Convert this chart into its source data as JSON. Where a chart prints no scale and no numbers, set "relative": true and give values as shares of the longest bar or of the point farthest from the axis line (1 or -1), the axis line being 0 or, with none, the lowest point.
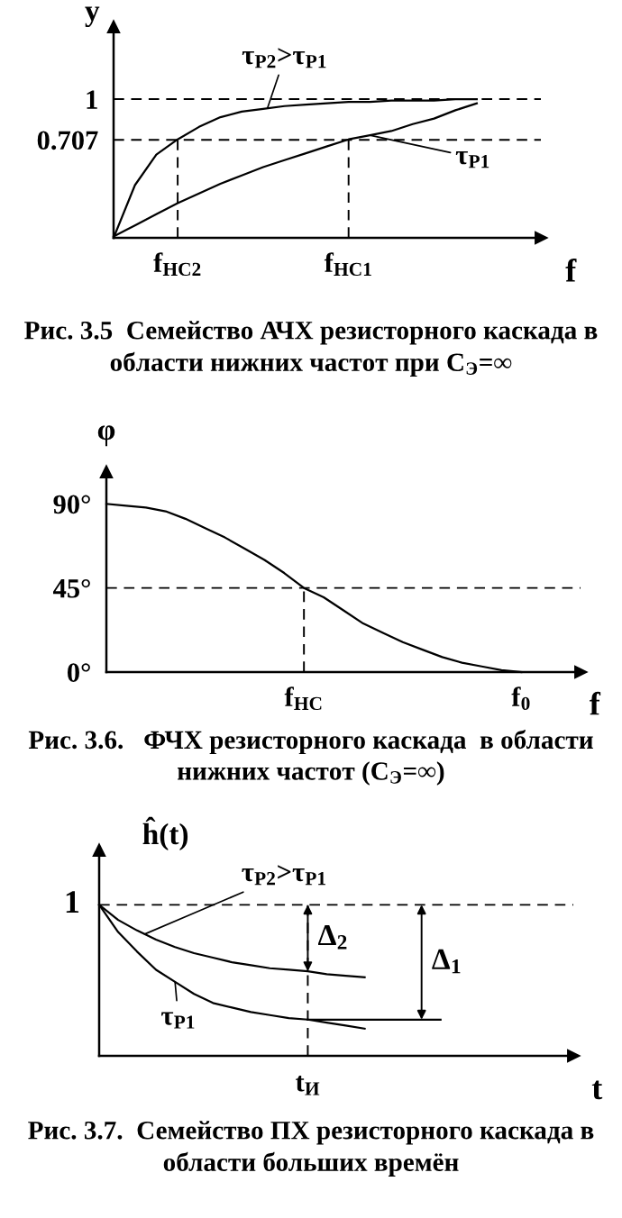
{
  "chart_data": [
    {
      "type": "line",
      "xlabel": "f",
      "ylabel": "y",
      "ylim": [
        0,
        1.52
      ],
      "categories": [
        null,
        null,
        null,
        "f$_{НС2}$",
        null,
        null,
        null,
        null,
        null,
        null,
        null,
        "f$_{НС1}$",
        null,
        null,
        null,
        null,
        null,
        null,
        null,
        null,
        null
      ],
      "yticks": [
        0.707,
        1
      ],
      "ref_lines": [
        {
          "axis": "y",
          "value": 1,
          "line_style": "dashed"
        },
        {
          "axis": "y",
          "value": 0.707,
          "line_style": "dashed"
        },
        {
          "axis": "x",
          "value": "f$_{НС2}$",
          "line_style": "dashed"
        },
        {
          "axis": "x",
          "value": "f$_{НС1}$",
          "line_style": "dashed"
        }
      ],
      "series": [
        {
          "name": "τ$_{P2}$>τ$_{P1}$",
          "color": "#000000",
          "values": [
            0,
            0.38,
            0.6,
            0.71,
            0.8,
            0.87,
            0.91,
            0.93,
            0.95,
            0.96,
            0.97,
            0.98,
            0.98,
            0.99,
            0.99,
            0.99,
            1.0,
            1.0,
            null,
            null,
            null
          ]
        },
        {
          "name": "τ$_{P1}$",
          "color": "#000000",
          "values": [
            0.01,
            0.09,
            0.17,
            0.25,
            0.32,
            0.39,
            0.45,
            0.51,
            0.56,
            0.61,
            0.66,
            0.71,
            0.74,
            0.77,
            0.82,
            0.86,
            0.92,
            0.97,
            null,
            null,
            null
          ]
        }
      ],
      "annotations": [
        "Рис. 3.5  Семейство АЧХ резисторного каскада в области нижних частот при C$_{Э}$=∞"
      ]
    },
    {
      "type": "line",
      "xlabel": "f",
      "ylabel": "φ",
      "ylim": [
        0,
        107
      ],
      "categories": [
        null,
        null,
        null,
        null,
        null,
        null,
        null,
        null,
        null,
        null,
        "f$_{НС}$",
        null,
        null,
        null,
        null,
        null,
        null,
        null,
        null,
        null,
        null,
        "f$_{0}$",
        null,
        null,
        null
      ],
      "yticks": [
        {
          "value": 0,
          "label": "0°"
        },
        {
          "value": 45,
          "label": "45°"
        },
        {
          "value": 90,
          "label": "90°"
        }
      ],
      "ref_lines": [
        {
          "axis": "y",
          "value": 45,
          "line_style": "dashed"
        },
        {
          "axis": "x",
          "value": "f$_{НС}$",
          "line_style": "dashed"
        }
      ],
      "series": [
        {
          "color": "#000000",
          "values": [
            90,
            89,
            88,
            86,
            82,
            77,
            72,
            66,
            60,
            53,
            45,
            40,
            33,
            26,
            21,
            16,
            12,
            8,
            5,
            3,
            1,
            0,
            null,
            null,
            null
          ]
        }
      ],
      "annotations": [
        "Рис. 3.6.   ФЧХ резисторного каскада  в области нижних частот (C$_{Э}$=∞)"
      ]
    },
    {
      "type": "line",
      "xlabel": "t",
      "ylabel": "ĥ(t)",
      "relative": true,
      "categories": [
        null,
        null,
        null,
        null,
        null,
        null,
        null,
        null,
        null,
        null,
        null,
        null,
        null,
        null,
        null,
        null,
        null,
        null,
        null,
        null,
        null,
        null,
        null,
        null,
        null,
        null
      ],
      "ref_lines": [
        {
          "axis": "y",
          "value": 1,
          "label": "1",
          "line_style": "dashed"
        },
        {
          "axis": "x",
          "label": "t$_{И}$",
          "line_style": "dashed"
        }
      ],
      "series": [
        {
          "name": "τ$_{P2}$>τ$_{P1}$",
          "color": "#000000",
          "values": [
            1,
            0.9,
            0.83,
            0.77,
            0.72,
            0.68,
            0.65,
            0.62,
            0.6,
            0.58,
            0.57,
            0.56,
            0.54,
            0.53,
            0.52,
            null,
            null,
            null,
            null,
            null,
            null,
            null,
            null,
            null,
            null,
            null
          ]
        },
        {
          "name": "τ$_{P1}$",
          "color": "#000000",
          "values": [
            1,
            0.82,
            0.69,
            0.57,
            0.49,
            0.41,
            0.35,
            0.32,
            0.29,
            0.27,
            0.25,
            0.24,
            0.22,
            0.2,
            0.18,
            null,
            null,
            null,
            null,
            null,
            null,
            null,
            null,
            null,
            null,
            null
          ]
        },
        {
          "color": "#000000",
          "values": [
            null,
            null,
            null,
            null,
            null,
            null,
            null,
            null,
            null,
            null,
            null,
            0.24,
            0.24,
            0.24,
            0.24,
            0.24,
            0.24,
            0.24,
            0.24,
            null,
            null,
            null,
            null,
            null,
            null,
            null
          ]
        }
      ],
      "annotations": [
        {
          "text": "Δ$_{2}$",
          "y": 0.56
        },
        {
          "text": "Δ$_{1}$",
          "y": 0.24
        },
        "Рис. 3.7.  Семейство ПХ резисторного каскада в области больших времён"
      ]
    }
  ]
}
